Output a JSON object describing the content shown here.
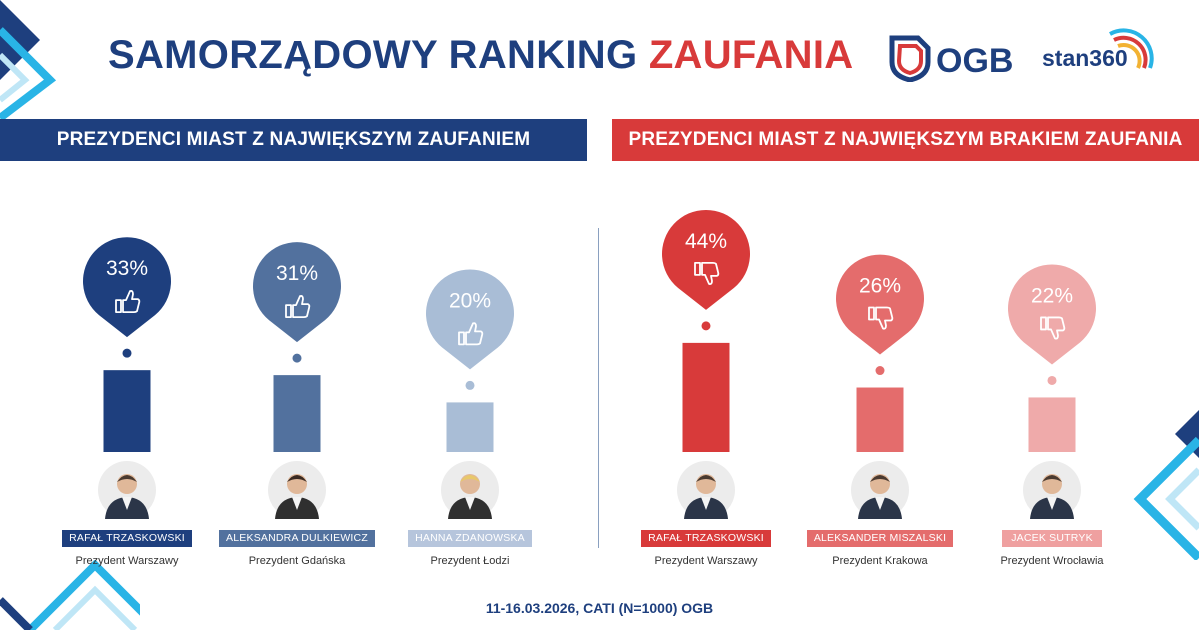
{
  "header": {
    "title_part1": "SAMORZĄDOWY RANKING",
    "title_part2": "ZAUFANIA",
    "logo_ogb": "OGB",
    "logo_stan": "stan360"
  },
  "colors": {
    "navy": "#1e3f7e",
    "red": "#d83a3a",
    "light_blue": "#29b4e6"
  },
  "banners": {
    "left": "PREZYDENCI MIAST Z NAJWIĘKSZYM ZAUFANIEM",
    "right": "PREZYDENCI MIAST Z NAJWIĘKSZYM BRAKIEM ZAUFANIA"
  },
  "footer": "11-16.03.2026, CATI (N=1000) OGB",
  "chart_data": [
    {
      "type": "bar",
      "title": "PREZYDENCI MIAST Z NAJWIĘKSZYM ZAUFANIEM",
      "unit": "%",
      "icon": "thumbs-up-icon",
      "categories": [
        "RAFAŁ TRZASKOWSKI",
        "ALEKSANDRA DULKIEWICZ",
        "HANNA ZDANOWSKA"
      ],
      "roles": [
        "Prezydent Warszawy",
        "Prezydent Gdańska",
        "Prezydent Łodzi"
      ],
      "values": [
        33,
        31,
        20
      ],
      "labels": [
        "33%",
        "31%",
        "20%"
      ],
      "colors": [
        "#1e3f7e",
        "#52719e",
        "#a9bdd6"
      ],
      "tag_colors": [
        "#1e3f7e",
        "#52719e",
        "#b6c5dc"
      ]
    },
    {
      "type": "bar",
      "title": "PREZYDENCI MIAST Z NAJWIĘKSZYM BRAKIEM ZAUFANIA",
      "unit": "%",
      "icon": "thumbs-down-icon",
      "categories": [
        "RAFAŁ TRZASKOWSKI",
        "ALEKSANDER MISZALSKI",
        "JACEK SUTRYK"
      ],
      "roles": [
        "Prezydent Warszawy",
        "Prezydent Krakowa",
        "Prezydent Wrocławia"
      ],
      "values": [
        44,
        26,
        22
      ],
      "labels": [
        "44%",
        "26%",
        "22%"
      ],
      "colors": [
        "#d83a3a",
        "#e46c6c",
        "#efaaaa"
      ],
      "tag_colors": [
        "#d83a3a",
        "#e46c6c",
        "#efa0a0"
      ]
    }
  ]
}
